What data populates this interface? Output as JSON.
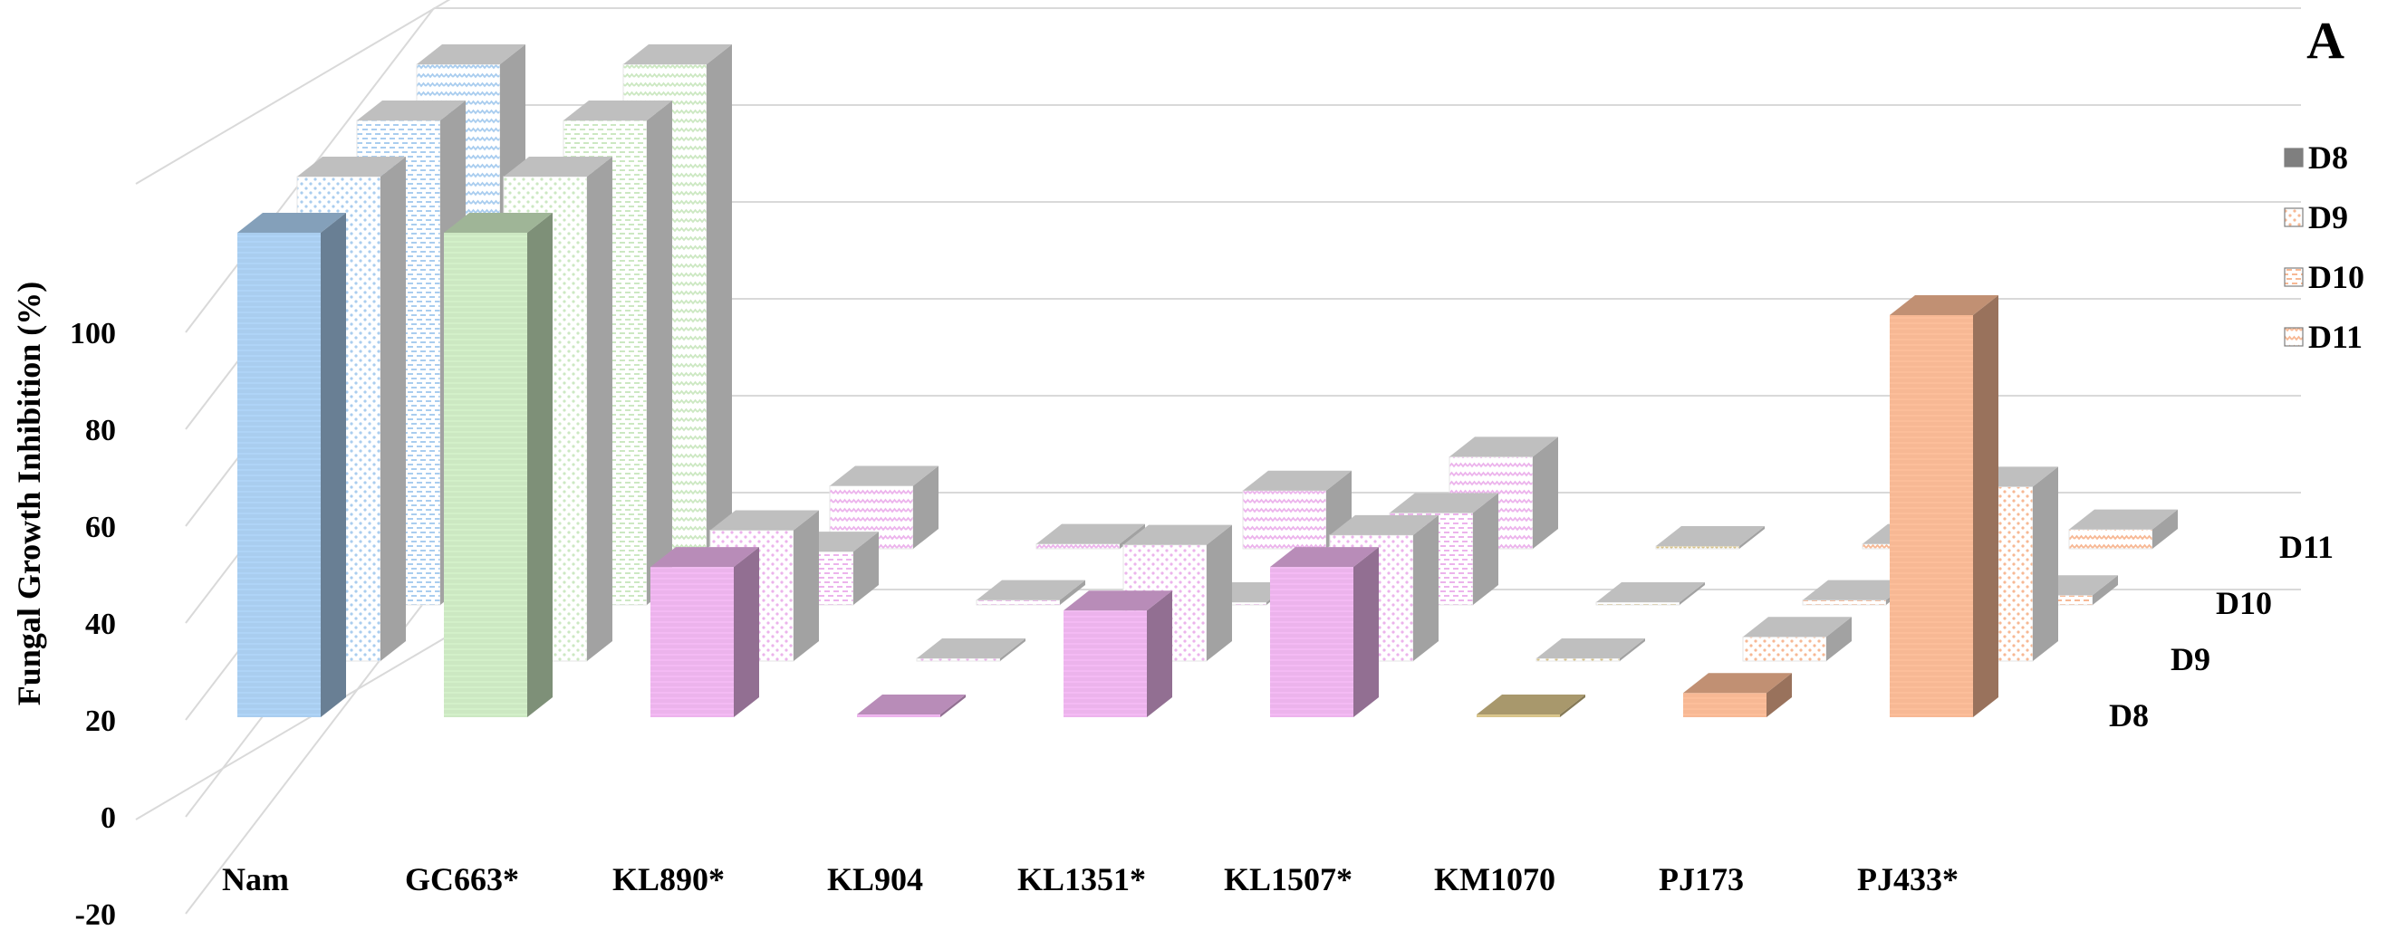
{
  "panel_label": "A",
  "chart_data": {
    "type": "bar",
    "ylabel": "Fungal Growth Inhibition (%)",
    "ylim": [
      -20,
      100
    ],
    "yticks": [
      "-20",
      "0",
      "20",
      "40",
      "60",
      "80",
      "100"
    ],
    "categories": [
      "Nam",
      "GC663*",
      "KL890*",
      "KL904",
      "KL1351*",
      "KL1507*",
      "KM1070",
      "PJ173",
      "PJ433*"
    ],
    "category_colors": [
      "#a9cdef",
      "#cce8c2",
      "#ecb3ec",
      "#ecb3ec",
      "#ecb3ec",
      "#ecb3ec",
      "#d7c38a",
      "#f7b894",
      "#f7b894"
    ],
    "legend": {
      "placement": "right",
      "entries": [
        "D8",
        "D9",
        "D10",
        "D11"
      ]
    },
    "depth_labels": [
      "D8",
      "D9",
      "D10",
      "D11"
    ],
    "series": [
      {
        "name": "D8",
        "values": [
          100,
          100,
          31,
          0,
          22,
          31,
          0,
          5,
          83
        ]
      },
      {
        "name": "D9",
        "values": [
          100,
          100,
          27,
          0,
          24,
          26,
          0,
          5,
          36
        ]
      },
      {
        "name": "D10",
        "values": [
          100,
          100,
          11,
          1,
          0,
          19,
          0,
          1,
          2
        ]
      },
      {
        "name": "D11",
        "values": [
          100,
          100,
          13,
          1,
          12,
          19,
          0,
          1,
          4
        ]
      }
    ]
  }
}
